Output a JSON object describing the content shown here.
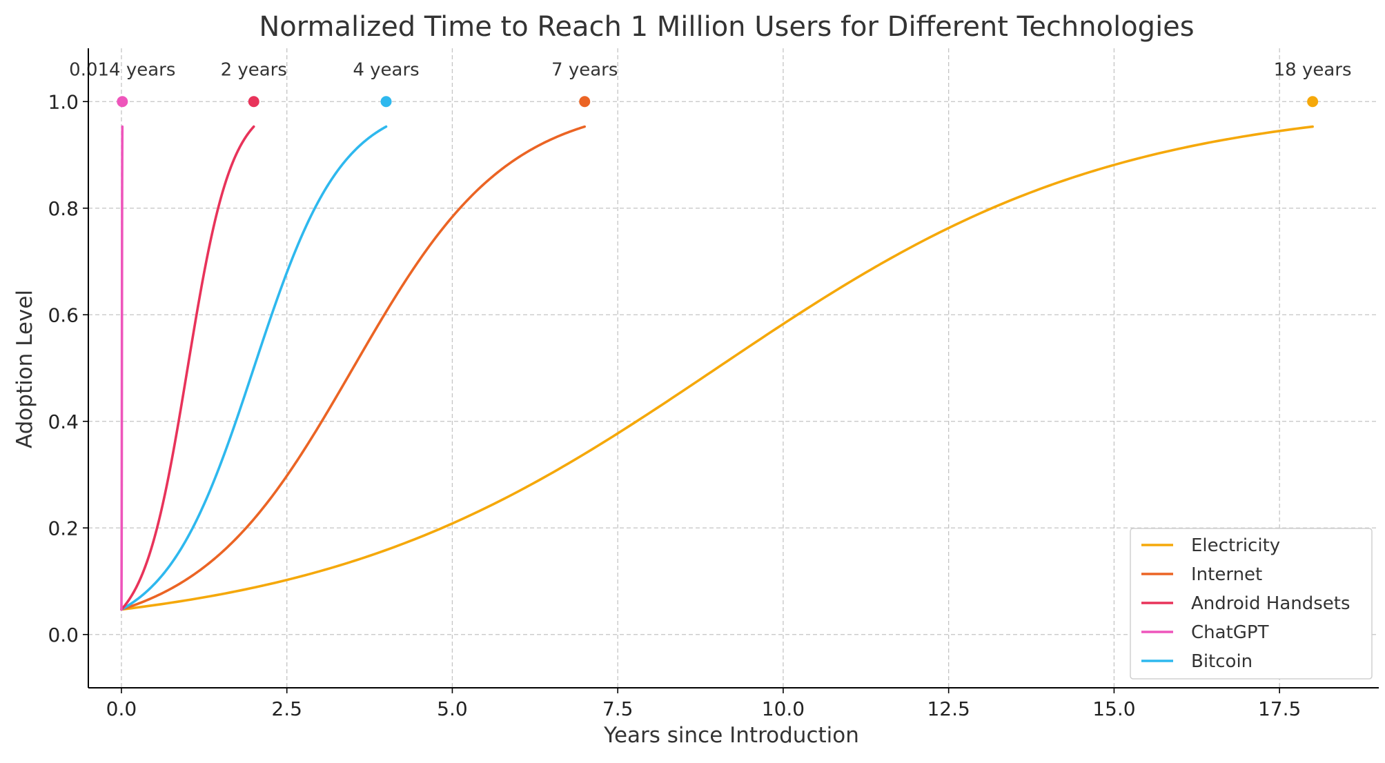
{
  "chart_data": {
    "type": "line",
    "title": "Normalized Time to Reach 1 Million Users for Different Technologies",
    "xlabel": "Years since Introduction",
    "ylabel": "Adoption Level",
    "xlim": [
      -0.5,
      19.0
    ],
    "ylim": [
      -0.1,
      1.1
    ],
    "xticks": [
      0.0,
      2.5,
      5.0,
      7.5,
      10.0,
      12.5,
      15.0,
      17.5
    ],
    "xtick_labels": [
      "0.0",
      "2.5",
      "5.0",
      "7.5",
      "10.0",
      "12.5",
      "15.0",
      "17.5"
    ],
    "yticks": [
      0.0,
      0.2,
      0.4,
      0.6,
      0.8,
      1.0
    ],
    "ytick_labels": [
      "0.0",
      "0.2",
      "0.4",
      "0.6",
      "0.8",
      "1.0"
    ],
    "grid": true,
    "legend_position": "bottom-right",
    "curve_start": 0.047,
    "curve_end": 0.953,
    "series": [
      {
        "name": "Electricity",
        "color": "#F5A80A",
        "years": 18,
        "marker_y": 1.0,
        "annotation": "18 years"
      },
      {
        "name": "Internet",
        "color": "#EB6424",
        "years": 7,
        "marker_y": 1.0,
        "annotation": "7 years"
      },
      {
        "name": "Android Handsets",
        "color": "#E8335A",
        "years": 2,
        "marker_y": 1.0,
        "annotation": "2 years"
      },
      {
        "name": "ChatGPT",
        "color": "#EE55BB",
        "years": 0.014,
        "marker_y": 1.0,
        "annotation": "0.014 years"
      },
      {
        "name": "Bitcoin",
        "color": "#2EB8EE",
        "years": 4,
        "marker_y": 1.0,
        "annotation": "4 years"
      }
    ]
  }
}
